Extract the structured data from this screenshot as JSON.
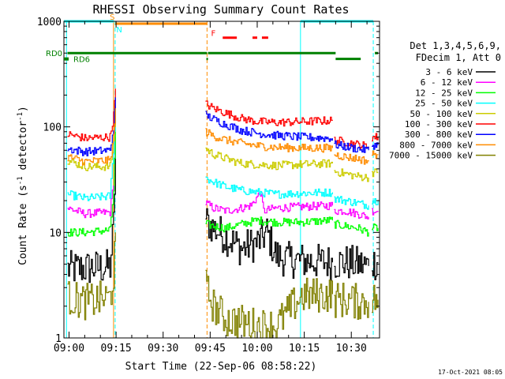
{
  "chart_data": {
    "type": "line",
    "title": "RHESSI Observing Summary Count Rates",
    "xlabel": "Start Time (22-Sep-06 08:58:22)",
    "ylabel_parts": [
      "Count Rate (s",
      "-1",
      " detector",
      "-1",
      ")"
    ],
    "y_scale": "log",
    "ylim": [
      1,
      1000
    ],
    "xlim_min": [
      -1.63,
      99.0
    ],
    "y_ticks": [
      {
        "value": 1,
        "label": "1"
      },
      {
        "value": 10,
        "label": "10"
      },
      {
        "value": 100,
        "label": "100"
      },
      {
        "value": 1000,
        "label": "1000"
      }
    ],
    "x_ticks": [
      {
        "value": 0,
        "label": "09:00"
      },
      {
        "value": 15,
        "label": "09:15"
      },
      {
        "value": 30,
        "label": "09:30"
      },
      {
        "value": 45,
        "label": "09:45"
      },
      {
        "value": 60,
        "label": "10:00"
      },
      {
        "value": 75,
        "label": "10:15"
      },
      {
        "value": 90,
        "label": "10:30"
      }
    ],
    "timestamp": "17-Oct-2021 08:05",
    "legend_header": [
      "Det 1,3,4,5,6,9,",
      "FDecim 1, Att 0"
    ],
    "series": [
      {
        "name": "3 - 6 keV",
        "color": "#000000",
        "segments": [
          [
            [
              -0.5,
              4.5
            ],
            [
              13,
              4.7
            ],
            [
              14.2,
              12
            ],
            [
              14.8,
              60
            ]
          ],
          [
            [
              43.5,
              13
            ],
            [
              46,
              11
            ],
            [
              50,
              9
            ],
            [
              55,
              7
            ],
            [
              60,
              8
            ],
            [
              63,
              10
            ],
            [
              66,
              6
            ],
            [
              70,
              5.5
            ],
            [
              78,
              5.3
            ],
            [
              84,
              5.2
            ]
          ],
          [
            [
              84.5,
              5.2
            ],
            [
              88,
              5.2
            ],
            [
              92,
              5
            ],
            [
              95.5,
              4.8
            ]
          ],
          [
            [
              96.5,
              5.2
            ],
            [
              98.5,
              5.2
            ]
          ]
        ]
      },
      {
        "name": "6 - 12 keV",
        "color": "#ff00ff",
        "segments": [
          [
            [
              -0.5,
              17
            ],
            [
              5,
              15
            ],
            [
              13,
              15.5
            ],
            [
              14.2,
              30
            ],
            [
              14.8,
              80
            ]
          ],
          [
            [
              43.5,
              19
            ],
            [
              46,
              17
            ],
            [
              50,
              16
            ],
            [
              55,
              17
            ],
            [
              58,
              18
            ],
            [
              61,
              24
            ],
            [
              62,
              16
            ],
            [
              66,
              17
            ],
            [
              74,
              17.5
            ],
            [
              84,
              18
            ]
          ],
          [
            [
              84.5,
              16
            ],
            [
              88,
              16
            ],
            [
              92,
              15
            ],
            [
              95.5,
              14
            ]
          ],
          [
            [
              96.5,
              16
            ],
            [
              98.5,
              16
            ]
          ]
        ]
      },
      {
        "name": "12 - 25 keV",
        "color": "#00ff00",
        "segments": [
          [
            [
              -0.5,
              10
            ],
            [
              5,
              10
            ],
            [
              13,
              10.5
            ],
            [
              14.2,
              25
            ],
            [
              14.8,
              90
            ]
          ],
          [
            [
              43.5,
              12
            ],
            [
              46,
              11.5
            ],
            [
              50,
              11
            ],
            [
              55,
              12
            ],
            [
              60,
              13
            ],
            [
              66,
              12.5
            ],
            [
              74,
              12.5
            ],
            [
              84,
              13
            ]
          ],
          [
            [
              84.5,
              12
            ],
            [
              88,
              11.5
            ],
            [
              92,
              11
            ],
            [
              95.5,
              10
            ]
          ],
          [
            [
              96.5,
              11
            ],
            [
              98.5,
              11
            ]
          ]
        ]
      },
      {
        "name": "25 - 50 keV",
        "color": "#00ffff",
        "segments": [
          [
            [
              -0.5,
              23
            ],
            [
              5,
              21
            ],
            [
              13,
              22
            ],
            [
              14.2,
              60
            ],
            [
              14.8,
              150
            ]
          ],
          [
            [
              43.5,
              33
            ],
            [
              46,
              30
            ],
            [
              50,
              27
            ],
            [
              55,
              25
            ],
            [
              60,
              24
            ],
            [
              66,
              23
            ],
            [
              74,
              23.5
            ],
            [
              84,
              24
            ]
          ],
          [
            [
              84.5,
              21
            ],
            [
              88,
              20
            ],
            [
              92,
              19
            ],
            [
              95.5,
              18
            ]
          ],
          [
            [
              96.5,
              20
            ],
            [
              98.5,
              20
            ]
          ]
        ]
      },
      {
        "name": "50 - 100 keV",
        "color": "#cccc00",
        "segments": [
          [
            [
              -0.5,
              48
            ],
            [
              5,
              42
            ],
            [
              13,
              42
            ],
            [
              14.2,
              70
            ],
            [
              14.8,
              160
            ]
          ],
          [
            [
              43.5,
              62
            ],
            [
              46,
              55
            ],
            [
              50,
              50
            ],
            [
              55,
              45
            ],
            [
              60,
              44
            ],
            [
              66,
              43
            ],
            [
              74,
              44
            ],
            [
              84,
              45
            ]
          ],
          [
            [
              84.5,
              38
            ],
            [
              88,
              36
            ],
            [
              92,
              34
            ],
            [
              95.5,
              33
            ]
          ],
          [
            [
              96.5,
              37
            ],
            [
              98.5,
              37
            ]
          ]
        ]
      },
      {
        "name": "100 - 300 keV",
        "color": "#ff0000",
        "segments": [
          [
            [
              -0.5,
              85
            ],
            [
              5,
              78
            ],
            [
              13,
              80
            ],
            [
              14.2,
              130
            ],
            [
              14.8,
              230
            ]
          ],
          [
            [
              43.5,
              165
            ],
            [
              46,
              150
            ],
            [
              50,
              135
            ],
            [
              55,
              120
            ],
            [
              60,
              112
            ],
            [
              66,
              110
            ],
            [
              74,
              112
            ],
            [
              84,
              115
            ]
          ],
          [
            [
              84.5,
              75
            ],
            [
              88,
              72
            ],
            [
              92,
              68
            ],
            [
              95.5,
              65
            ]
          ],
          [
            [
              96.5,
              80
            ],
            [
              98.5,
              80
            ]
          ]
        ]
      },
      {
        "name": "300 - 800 keV",
        "color": "#0000ff",
        "segments": [
          [
            [
              -0.5,
              62
            ],
            [
              5,
              58
            ],
            [
              13,
              60
            ],
            [
              14.2,
              100
            ],
            [
              14.8,
              190
            ]
          ],
          [
            [
              43.5,
              130
            ],
            [
              46,
              118
            ],
            [
              50,
              105
            ],
            [
              55,
              93
            ],
            [
              60,
              87
            ],
            [
              66,
              83
            ],
            [
              74,
              80
            ],
            [
              84,
              78
            ]
          ],
          [
            [
              84.5,
              68
            ],
            [
              88,
              65
            ],
            [
              92,
              62
            ],
            [
              95.5,
              60
            ]
          ],
          [
            [
              96.5,
              67
            ],
            [
              98.5,
              67
            ]
          ]
        ]
      },
      {
        "name": "800 - 7000 keV",
        "color": "#ff8c00",
        "segments": [
          [
            [
              -0.5,
              52
            ],
            [
              5,
              47
            ],
            [
              13,
              48
            ],
            [
              14.2,
              80
            ],
            [
              14.8,
              150
            ]
          ],
          [
            [
              43.5,
              90
            ],
            [
              46,
              82
            ],
            [
              50,
              75
            ],
            [
              55,
              70
            ],
            [
              60,
              66
            ],
            [
              66,
              64
            ],
            [
              74,
              63
            ],
            [
              84,
              63
            ]
          ],
          [
            [
              84.5,
              55
            ],
            [
              88,
              52
            ],
            [
              92,
              50
            ],
            [
              95.5,
              47
            ]
          ],
          [
            [
              96.5,
              55
            ],
            [
              98.5,
              55
            ]
          ]
        ]
      },
      {
        "name": "7000 - 15000 keV",
        "color": "#808000",
        "segments": [
          [
            [
              -0.5,
              2.4
            ],
            [
              5,
              2.2
            ],
            [
              13,
              2.4
            ],
            [
              14.2,
              4
            ],
            [
              14.8,
              10
            ]
          ],
          [
            [
              43.5,
              3
            ],
            [
              46,
              2
            ],
            [
              50,
              1.5
            ],
            [
              55,
              1.4
            ],
            [
              60,
              1.3
            ],
            [
              66,
              1.3
            ],
            [
              74,
              2.5
            ],
            [
              84,
              2.6
            ]
          ],
          [
            [
              84.5,
              2.3
            ],
            [
              88,
              2.3
            ],
            [
              92,
              2.2
            ],
            [
              95.5,
              2.2
            ]
          ],
          [
            [
              96.5,
              2.3
            ],
            [
              98.5,
              2.3
            ]
          ]
        ]
      }
    ],
    "vertical_lines": [
      {
        "x": -0.8,
        "color": "#00ffff",
        "style": "solid"
      },
      {
        "x": 14.2,
        "color": "#ff8c00",
        "style": "solid"
      },
      {
        "x": 14.7,
        "color": "#00ffff",
        "style": "dashed"
      },
      {
        "x": 44.0,
        "color": "#ff8c00",
        "style": "dashed"
      },
      {
        "x": 73.8,
        "color": "#00ffff",
        "style": "solid"
      },
      {
        "x": 97.0,
        "color": "#00ffff",
        "style": "dashed"
      }
    ],
    "flag_bars": [
      {
        "color": "#00ffff",
        "y": 1000,
        "level_text": "",
        "start": -1.63,
        "end": 14.3
      },
      {
        "color": "#00ffff",
        "y": 1000,
        "level_text": "",
        "start": 73.8,
        "end": 97.0
      },
      {
        "color": "#ff8c00",
        "y": 950,
        "level_text": "",
        "start": 14.7,
        "end": 44.0
      },
      {
        "color": "#ff0000",
        "y": 700,
        "level_text": "",
        "start": 49.0,
        "end": 53.5
      },
      {
        "color": "#ff0000",
        "y": 700,
        "level_text": "",
        "start": 58.5,
        "end": 60.0
      },
      {
        "color": "#ff0000",
        "y": 700,
        "level_text": "",
        "start": 61.5,
        "end": 63.5
      },
      {
        "color": "#008000",
        "y": 500,
        "level_text": "",
        "start": -0.5,
        "end": 44.0
      },
      {
        "color": "#008000",
        "y": 500,
        "level_text": "",
        "start": 44.3,
        "end": 85.0
      },
      {
        "color": "#008000",
        "y": 500,
        "level_text": "",
        "start": 97.5,
        "end": 98.5
      },
      {
        "color": "#008000",
        "y": 440,
        "level_text": "",
        "start": 43.8,
        "end": 44.3
      },
      {
        "color": "#008000",
        "y": 440,
        "level_text": "",
        "start": 85.0,
        "end": 93.0
      }
    ],
    "flag_labels": [
      {
        "text": "S",
        "x": 13.8,
        "y": 1000,
        "color": "#ff8c00"
      },
      {
        "text": "N",
        "x": 16.0,
        "y": 1000,
        "color": "#00ffff"
      },
      {
        "text": "F",
        "x": 46.0,
        "y": 700,
        "color": "#ff0000"
      }
    ],
    "left_labels": [
      {
        "text": "RD0",
        "y": 500,
        "color": "#008000"
      },
      {
        "text": "RD6",
        "y": 440,
        "color": "#008000"
      }
    ]
  }
}
